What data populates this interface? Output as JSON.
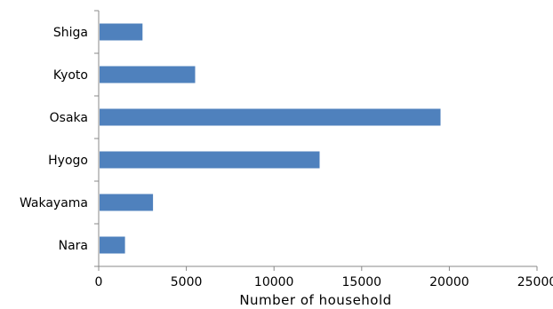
{
  "chart_data": {
    "type": "bar",
    "orientation": "horizontal",
    "categories": [
      "Shiga",
      "Kyoto",
      "Osaka",
      "Hyogo",
      "Wakayama",
      "Nara"
    ],
    "values": [
      2500,
      5500,
      19500,
      12600,
      3100,
      1500
    ],
    "xlabel": "Number  of household",
    "ylabel": "",
    "xlim": [
      0,
      25000
    ],
    "xticks": [
      "0",
      "5000",
      "10000",
      "15000",
      "20000",
      "25000"
    ],
    "grid": false,
    "bar_color": "#4f81bd"
  }
}
